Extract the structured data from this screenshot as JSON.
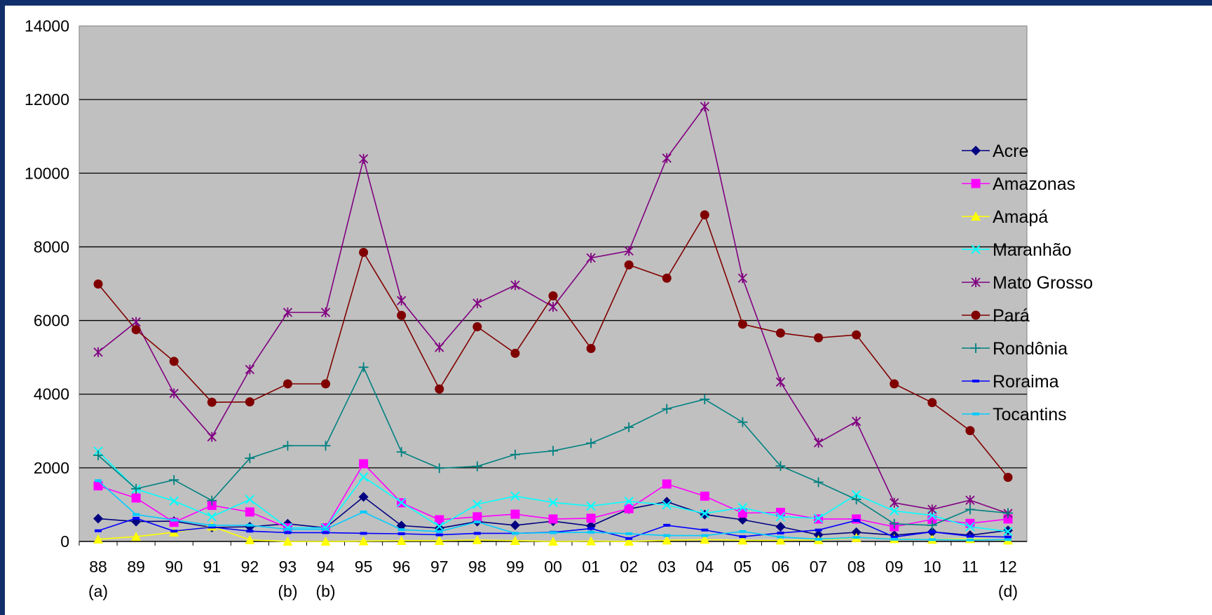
{
  "chart_data": {
    "type": "line",
    "title": "",
    "xlabel": "",
    "ylabel": "",
    "ylim": [
      0,
      14000
    ],
    "yticks": [
      0,
      2000,
      4000,
      6000,
      8000,
      10000,
      12000,
      14000
    ],
    "grid": true,
    "legend_position": "right",
    "plot_background": "#c0c0c0",
    "categories": [
      "88",
      "89",
      "90",
      "91",
      "92",
      "93",
      "94",
      "95",
      "96",
      "97",
      "98",
      "99",
      "00",
      "01",
      "02",
      "03",
      "04",
      "05",
      "06",
      "07",
      "08",
      "09",
      "10",
      "11",
      "12"
    ],
    "category_notes": {
      "0": "(a)",
      "5": "(b)",
      "6": "(b)",
      "24": "(d)"
    },
    "series": [
      {
        "name": "Acre",
        "color": "#000080",
        "marker": "diamond",
        "values": [
          620,
          540,
          550,
          380,
          400,
          480,
          370,
          1210,
          430,
          360,
          540,
          440,
          550,
          420,
          880,
          1080,
          730,
          590,
          400,
          180,
          250,
          170,
          260,
          170,
          300
        ]
      },
      {
        "name": "Amazonas",
        "color": "#ff00ff",
        "marker": "square",
        "values": [
          1510,
          1180,
          520,
          980,
          800,
          370,
          370,
          2110,
          1050,
          590,
          670,
          740,
          610,
          630,
          890,
          1560,
          1230,
          770,
          790,
          610,
          610,
          400,
          600,
          490,
          610
        ]
      },
      {
        "name": "Amapá",
        "color": "#ffff00",
        "marker": "triangle",
        "values": [
          60,
          130,
          250,
          410,
          40,
          0,
          0,
          10,
          20,
          20,
          40,
          20,
          0,
          10,
          0,
          30,
          50,
          30,
          30,
          40,
          100,
          70,
          50,
          70,
          30
        ]
      },
      {
        "name": "Maranhão",
        "color": "#00ffff",
        "marker": "x",
        "values": [
          2450,
          1420,
          1100,
          670,
          1140,
          370,
          370,
          1750,
          1060,
          410,
          1010,
          1230,
          1060,
          960,
          1090,
          990,
          760,
          920,
          670,
          630,
          1270,
          830,
          710,
          400,
          270
        ]
      },
      {
        "name": "Mato Grosso",
        "color": "#800080",
        "marker": "asterisk",
        "values": [
          5140,
          5960,
          4020,
          2840,
          4670,
          6220,
          6220,
          10390,
          6540,
          5270,
          6470,
          6960,
          6370,
          7700,
          7890,
          10410,
          11810,
          7150,
          4330,
          2680,
          3260,
          1050,
          870,
          1120,
          760
        ]
      },
      {
        "name": "Pará",
        "color": "#800000",
        "marker": "circle",
        "values": [
          6990,
          5750,
          4890,
          3780,
          3790,
          4280,
          4280,
          7850,
          6140,
          4140,
          5830,
          5110,
          6670,
          5240,
          7510,
          7150,
          8870,
          5900,
          5660,
          5530,
          5610,
          4280,
          3770,
          3010,
          1740
        ]
      },
      {
        "name": "Rondônia",
        "color": "#008080",
        "marker": "plus",
        "values": [
          2340,
          1430,
          1670,
          1110,
          2260,
          2600,
          2600,
          4730,
          2430,
          1990,
          2040,
          2360,
          2460,
          2670,
          3100,
          3600,
          3860,
          3240,
          2050,
          1610,
          1140,
          480,
          440,
          870,
          770
        ]
      },
      {
        "name": "Roraima",
        "color": "#0000ff",
        "marker": "dash",
        "values": [
          290,
          630,
          280,
          390,
          280,
          240,
          240,
          220,
          210,
          180,
          220,
          220,
          250,
          350,
          80,
          440,
          310,
          130,
          230,
          310,
          570,
          120,
          260,
          140,
          120
        ]
      },
      {
        "name": "Tocantins",
        "color": "#00ccff",
        "marker": "dash",
        "values": [
          1650,
          730,
          580,
          440,
          440,
          330,
          330,
          800,
          320,
          270,
          530,
          220,
          240,
          250,
          210,
          160,
          160,
          270,
          120,
          60,
          110,
          60,
          50,
          40,
          50
        ]
      }
    ]
  }
}
